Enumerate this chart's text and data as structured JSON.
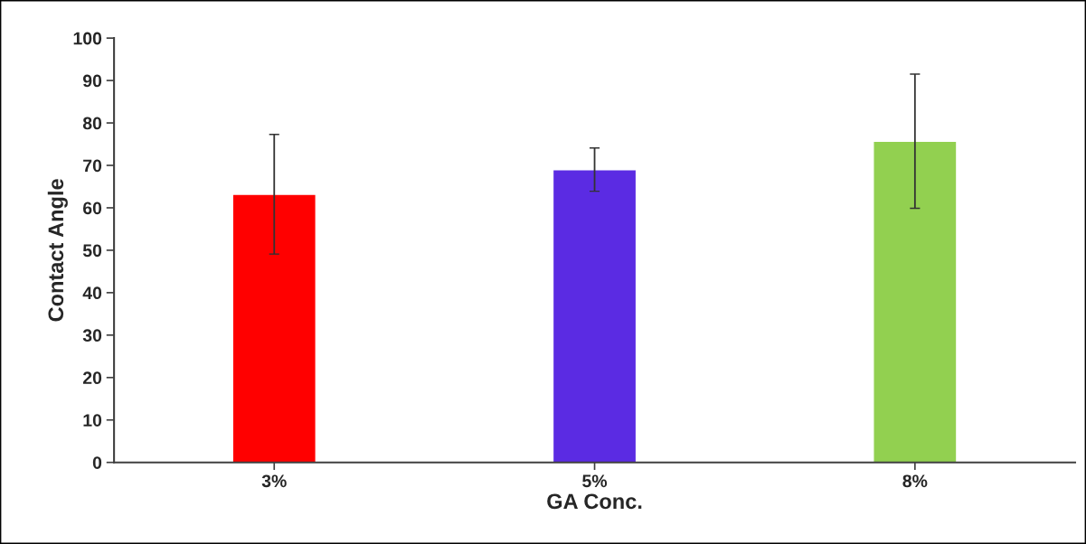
{
  "chart_data": {
    "type": "bar",
    "xlabel": "GA Conc.",
    "ylabel": "Contact Angle",
    "categories": [
      "3%",
      "5%",
      "8%"
    ],
    "values": [
      63.2,
      69.0,
      75.7
    ],
    "colors": [
      "#ff0000",
      "#5b2be3",
      "#92d050"
    ],
    "errors": [
      14.1,
      5.1,
      15.8
    ],
    "ylim": [
      0,
      100
    ],
    "yticks": [
      0,
      10,
      20,
      30,
      40,
      50,
      60,
      70,
      80,
      90,
      100
    ],
    "grid": false,
    "legend": false
  }
}
